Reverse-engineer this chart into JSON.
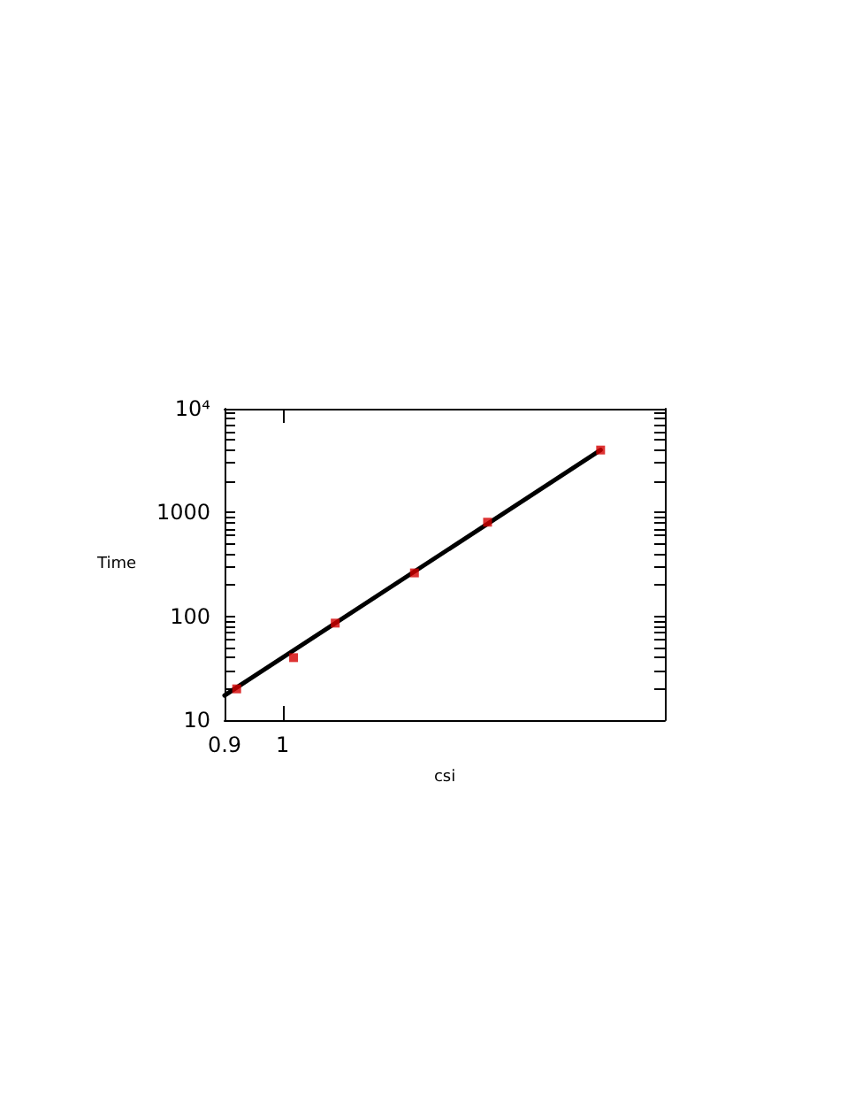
{
  "chart_data": {
    "type": "scatter",
    "xlabel": "csi",
    "ylabel": "Time",
    "log": "xy",
    "grid": false,
    "marker": "square",
    "xlim": [
      0.9,
      2
    ],
    "xticks": [
      0.9,
      1
    ],
    "ylim": [
      10,
      10000
    ],
    "yticks": [
      10,
      {
        "value": 20,
        "label": null
      },
      {
        "value": 30,
        "label": null
      },
      {
        "value": 40,
        "label": null
      },
      {
        "value": 50,
        "label": null
      },
      {
        "value": 60,
        "label": null
      },
      {
        "value": 70,
        "label": null
      },
      {
        "value": 80,
        "label": null
      },
      {
        "value": 90,
        "label": null
      },
      100,
      {
        "value": 200,
        "label": null
      },
      {
        "value": 300,
        "label": null
      },
      {
        "value": 400,
        "label": null
      },
      {
        "value": 500,
        "label": null
      },
      {
        "value": 600,
        "label": null
      },
      {
        "value": 700,
        "label": null
      },
      {
        "value": 800,
        "label": null
      },
      {
        "value": 900,
        "label": null
      },
      1000,
      {
        "value": 2000,
        "label": null
      },
      {
        "value": 3000,
        "label": null
      },
      {
        "value": 4000,
        "label": null
      },
      {
        "value": 5000,
        "label": null
      },
      {
        "value": 6000,
        "label": null
      },
      {
        "value": 7000,
        "label": null
      },
      {
        "value": 8000,
        "label": null
      },
      {
        "value": 9000,
        "label": null
      },
      {
        "value": 10000,
        "label": "10⁴"
      }
    ],
    "series": [
      {
        "color": "#d40000",
        "x": [
          0.92,
          1.02,
          1.1,
          1.27,
          1.45,
          1.78
        ],
        "values": [
          20,
          40,
          86,
          262,
          807,
          4000
        ]
      },
      {
        "type": "line",
        "color": "#000000",
        "marker": "none",
        "line_style": "solid",
        "x": [
          0.9,
          1.78
        ],
        "values": [
          17.3,
          4000
        ]
      }
    ]
  }
}
